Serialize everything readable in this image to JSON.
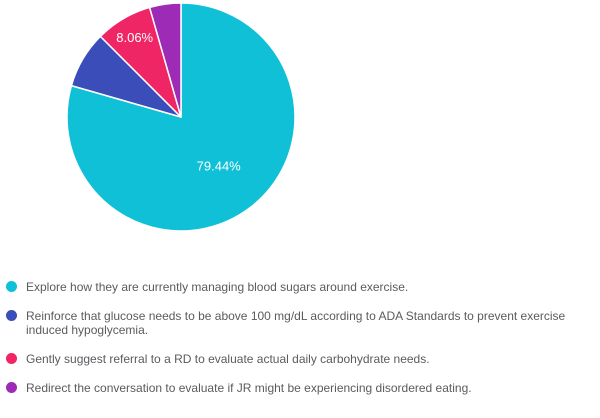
{
  "chart_data": {
    "type": "pie",
    "direction": "clockwise",
    "start_angle_deg": 0,
    "legend_position": "bottom",
    "data_label_color": "#ffffff",
    "legend_text_color": "#595b5e",
    "slices": [
      {
        "label": "Explore how they are currently managing blood sugars around exercise.",
        "value": 79.44,
        "color": "#0fc0d7",
        "shown_label": "79.44%"
      },
      {
        "label": "Reinforce that glucose needs to be above 100 mg/dL according to ADA Standards to prevent exercise induced hypoglycemia.",
        "value": 8.06,
        "color": "#3a4db9",
        "shown_label": null
      },
      {
        "label": "Gently suggest referral to a RD to evaluate actual daily carbohydrate needs.",
        "value": 8.06,
        "color": "#ef2566",
        "shown_label": "8.06%"
      },
      {
        "label": "Redirect the conversation to evaluate if JR might be experiencing disordered eating.",
        "value": 4.44,
        "color": "#9e2bb5",
        "shown_label": null
      }
    ]
  }
}
